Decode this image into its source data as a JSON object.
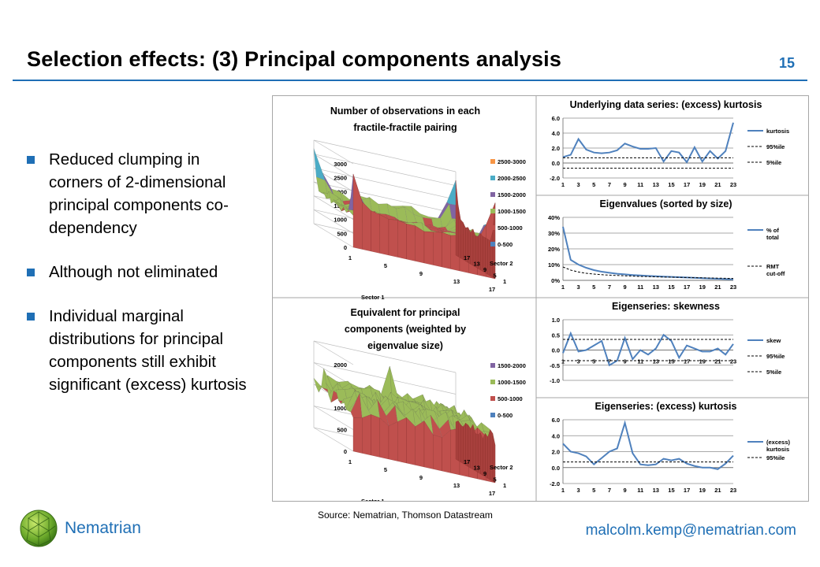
{
  "slide": {
    "title": "Selection effects: (3) Principal components analysis",
    "page_number": "15",
    "bullets": [
      "Reduced clumping in corners of 2-dimensional principal components co-dependency",
      "Although not eliminated",
      "Individual marginal distributions for principal components still exhibit significant (excess) kurtosis"
    ],
    "source": "Source: Nematrian, Thomson Datastream",
    "brand": "Nematrian",
    "email": "malcolm.kemp@nematrian.com",
    "accent_color": "#1f6fb5"
  },
  "chart_data": [
    {
      "type": "surface",
      "title": "Number of observations in each fractile-fractile pairing",
      "zticks": [
        "0",
        "500",
        "1000",
        "1500",
        "2000",
        "2500",
        "3000"
      ],
      "xlabel": "Sector 1",
      "ylabel": "Sector 2",
      "xticks": [
        "1",
        "5",
        "9",
        "13",
        "17"
      ],
      "yticks": [
        "1",
        "5",
        "9",
        "13",
        "17"
      ],
      "legend": [
        {
          "label": "2500-3000",
          "color": "#f79646"
        },
        {
          "label": "2000-2500",
          "color": "#4bacc6"
        },
        {
          "label": "1500-2000",
          "color": "#8064a2"
        },
        {
          "label": "1000-1500",
          "color": "#9bbb59"
        },
        {
          "label": "500-1000",
          "color": "#c0504d"
        },
        {
          "label": "0-500",
          "color": "#4f81bd"
        }
      ]
    },
    {
      "type": "line",
      "title": "Underlying data series: (excess) kurtosis",
      "ylim": [
        -2,
        6
      ],
      "yticks": [
        "6.0",
        "4.0",
        "2.0",
        "0.0",
        "-2.0"
      ],
      "xticks": [
        "1",
        "3",
        "5",
        "7",
        "9",
        "11",
        "13",
        "15",
        "17",
        "19",
        "21",
        "23"
      ],
      "x": [
        1,
        2,
        3,
        4,
        5,
        6,
        7,
        8,
        9,
        10,
        11,
        12,
        13,
        14,
        15,
        16,
        17,
        18,
        19,
        20,
        21,
        22,
        23
      ],
      "series": [
        {
          "name": "kurtosis",
          "style": "solid",
          "values": [
            0.8,
            1.1,
            3.2,
            1.8,
            1.4,
            1.3,
            1.4,
            1.7,
            2.6,
            2.2,
            1.9,
            1.9,
            2.0,
            0.2,
            1.6,
            1.4,
            0.1,
            2.1,
            0.2,
            1.6,
            0.6,
            1.6,
            5.4
          ]
        },
        {
          "name": "95%ile",
          "style": "dashed",
          "values": [
            0.7,
            0.7,
            0.7,
            0.7,
            0.7,
            0.7,
            0.7,
            0.7,
            0.7,
            0.7,
            0.7,
            0.7,
            0.7,
            0.7,
            0.7,
            0.7,
            0.7,
            0.7,
            0.7,
            0.7,
            0.7,
            0.7,
            0.7
          ]
        },
        {
          "name": "5%ile",
          "style": "dashed",
          "values": [
            -0.7,
            -0.7,
            -0.7,
            -0.7,
            -0.7,
            -0.7,
            -0.7,
            -0.7,
            -0.7,
            -0.7,
            -0.7,
            -0.7,
            -0.7,
            -0.7,
            -0.7,
            -0.7,
            -0.7,
            -0.7,
            -0.7,
            -0.7,
            -0.7,
            -0.7,
            -0.7
          ]
        }
      ]
    },
    {
      "type": "line",
      "title": "Eigenvalues (sorted by size)",
      "ylim": [
        0,
        40
      ],
      "yticks": [
        "40%",
        "30%",
        "20%",
        "10%",
        "0%"
      ],
      "xticks": [
        "1",
        "3",
        "5",
        "7",
        "9",
        "11",
        "13",
        "15",
        "17",
        "19",
        "21",
        "23"
      ],
      "x": [
        1,
        2,
        3,
        4,
        5,
        6,
        7,
        8,
        9,
        10,
        11,
        12,
        13,
        14,
        15,
        16,
        17,
        18,
        19,
        20,
        21,
        22,
        23
      ],
      "series": [
        {
          "name": "% of total",
          "style": "solid",
          "values": [
            34,
            13,
            10,
            8,
            6.5,
            5.5,
            4.8,
            4.2,
            3.8,
            3.4,
            3.1,
            2.8,
            2.6,
            2.4,
            2.2,
            2.0,
            1.8,
            1.6,
            1.4,
            1.2,
            1.0,
            0.8,
            0.6
          ]
        },
        {
          "name": "RMT cut-off",
          "style": "dashed",
          "values": [
            8.5,
            6.5,
            5.3,
            4.5,
            4.0,
            3.6,
            3.3,
            3.1,
            2.9,
            2.7,
            2.5,
            2.4,
            2.2,
            2.1,
            2.0,
            1.9,
            1.8,
            1.7,
            1.6,
            1.5,
            1.4,
            1.3,
            1.2
          ]
        }
      ]
    },
    {
      "type": "surface",
      "title": "Equivalent for principal components (weighted by eigenvalue size)",
      "zticks": [
        "0",
        "500",
        "1000",
        "1500",
        "2000"
      ],
      "xlabel": "Sector 1",
      "ylabel": "Sector 2",
      "xticks": [
        "1",
        "5",
        "9",
        "13",
        "17"
      ],
      "yticks": [
        "1",
        "5",
        "9",
        "13",
        "17"
      ],
      "legend": [
        {
          "label": "1500-2000",
          "color": "#8064a2"
        },
        {
          "label": "1000-1500",
          "color": "#9bbb59"
        },
        {
          "label": "500-1000",
          "color": "#c0504d"
        },
        {
          "label": "0-500",
          "color": "#4f81bd"
        }
      ]
    },
    {
      "type": "line",
      "title": "Eigenseries: skewness",
      "ylim": [
        -1,
        1
      ],
      "yticks": [
        "1.0",
        "0.5",
        "0.0",
        "-0.5",
        "-1.0"
      ],
      "xticks": [
        "1",
        "3",
        "5",
        "7",
        "9",
        "11",
        "13",
        "15",
        "17",
        "19",
        "21",
        "23"
      ],
      "x": [
        1,
        2,
        3,
        4,
        5,
        6,
        7,
        8,
        9,
        10,
        11,
        12,
        13,
        14,
        15,
        16,
        17,
        18,
        19,
        20,
        21,
        22,
        23
      ],
      "series": [
        {
          "name": "skew",
          "style": "solid",
          "values": [
            -0.1,
            0.55,
            -0.05,
            0.0,
            0.15,
            0.3,
            -0.5,
            -0.35,
            0.4,
            -0.3,
            0.0,
            -0.15,
            0.05,
            0.5,
            0.3,
            -0.25,
            0.15,
            0.05,
            -0.05,
            -0.05,
            0.05,
            -0.15,
            0.2
          ]
        },
        {
          "name": "95%ile",
          "style": "dashed",
          "values": [
            0.35,
            0.35,
            0.35,
            0.35,
            0.35,
            0.35,
            0.35,
            0.35,
            0.35,
            0.35,
            0.35,
            0.35,
            0.35,
            0.35,
            0.35,
            0.35,
            0.35,
            0.35,
            0.35,
            0.35,
            0.35,
            0.35,
            0.35
          ]
        },
        {
          "name": "5%ile",
          "style": "dashed",
          "values": [
            -0.35,
            -0.35,
            -0.35,
            -0.35,
            -0.35,
            -0.35,
            -0.35,
            -0.35,
            -0.35,
            -0.35,
            -0.35,
            -0.35,
            -0.35,
            -0.35,
            -0.35,
            -0.35,
            -0.35,
            -0.35,
            -0.35,
            -0.35,
            -0.35,
            -0.35,
            -0.35
          ]
        }
      ]
    },
    {
      "type": "line",
      "title": "Eigenseries: (excess) kurtosis",
      "ylim": [
        -2,
        6
      ],
      "yticks": [
        "6.0",
        "4.0",
        "2.0",
        "0.0",
        "-2.0"
      ],
      "xticks": [
        "1",
        "3",
        "5",
        "7",
        "9",
        "11",
        "13",
        "15",
        "17",
        "19",
        "21",
        "23"
      ],
      "x": [
        1,
        2,
        3,
        4,
        5,
        6,
        7,
        8,
        9,
        10,
        11,
        12,
        13,
        14,
        15,
        16,
        17,
        18,
        19,
        20,
        21,
        22,
        23
      ],
      "series": [
        {
          "name": "(excess) kurtosis",
          "style": "solid",
          "values": [
            3.0,
            2.0,
            1.8,
            1.4,
            0.4,
            1.2,
            2.0,
            2.4,
            5.6,
            1.8,
            0.4,
            0.3,
            0.4,
            1.1,
            0.9,
            1.1,
            0.5,
            0.2,
            0.0,
            0.0,
            -0.2,
            0.5,
            1.5
          ]
        },
        {
          "name": "95%ile",
          "style": "dashed",
          "values": [
            0.7,
            0.7,
            0.7,
            0.7,
            0.7,
            0.7,
            0.7,
            0.7,
            0.7,
            0.7,
            0.7,
            0.7,
            0.7,
            0.7,
            0.7,
            0.7,
            0.7,
            0.7,
            0.7,
            0.7,
            0.7,
            0.7,
            0.7
          ]
        }
      ]
    }
  ]
}
